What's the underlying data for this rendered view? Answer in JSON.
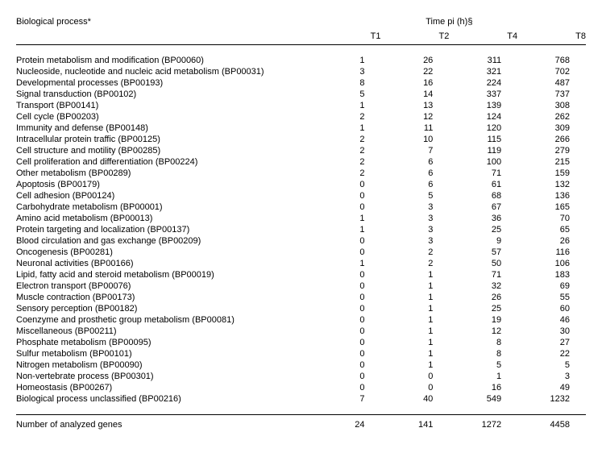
{
  "header": {
    "left": "Biological process*",
    "right": "Time pi (h)§",
    "cols": [
      "T1",
      "T2",
      "T4",
      "T8"
    ]
  },
  "rows": [
    {
      "label": "Protein metabolism and modification (BP00060)",
      "v": [
        "1",
        "26",
        "311",
        "768"
      ]
    },
    {
      "label": "Nucleoside, nucleotide and nucleic acid metabolism (BP00031)",
      "v": [
        "3",
        "22",
        "321",
        "702"
      ]
    },
    {
      "label": "Developmental processes (BP00193)",
      "v": [
        "8",
        "16",
        "224",
        "487"
      ]
    },
    {
      "label": "Signal transduction (BP00102)",
      "v": [
        "5",
        "14",
        "337",
        "737"
      ]
    },
    {
      "label": "Transport (BP00141)",
      "v": [
        "1",
        "13",
        "139",
        "308"
      ]
    },
    {
      "label": "Cell cycle (BP00203)",
      "v": [
        "2",
        "12",
        "124",
        "262"
      ]
    },
    {
      "label": "Immunity and defense (BP00148)",
      "v": [
        "1",
        "11",
        "120",
        "309"
      ]
    },
    {
      "label": "Intracellular protein traffic (BP00125)",
      "v": [
        "2",
        "10",
        "115",
        "266"
      ]
    },
    {
      "label": "Cell structure and motility (BP00285)",
      "v": [
        "2",
        "7",
        "119",
        "279"
      ]
    },
    {
      "label": "Cell proliferation and differentiation (BP00224)",
      "v": [
        "2",
        "6",
        "100",
        "215"
      ]
    },
    {
      "label": "Other metabolism (BP00289)",
      "v": [
        "2",
        "6",
        "71",
        "159"
      ]
    },
    {
      "label": "Apoptosis (BP00179)",
      "v": [
        "0",
        "6",
        "61",
        "132"
      ]
    },
    {
      "label": "Cell adhesion (BP00124)",
      "v": [
        "0",
        "5",
        "68",
        "136"
      ]
    },
    {
      "label": "Carbohydrate metabolism (BP00001)",
      "v": [
        "0",
        "3",
        "67",
        "165"
      ]
    },
    {
      "label": "Amino acid metabolism (BP00013)",
      "v": [
        "1",
        "3",
        "36",
        "70"
      ]
    },
    {
      "label": "Protein targeting and localization (BP00137)",
      "v": [
        "1",
        "3",
        "25",
        "65"
      ]
    },
    {
      "label": "Blood circulation and gas exchange (BP00209)",
      "v": [
        "0",
        "3",
        "9",
        "26"
      ]
    },
    {
      "label": "Oncogenesis (BP00281)",
      "v": [
        "0",
        "2",
        "57",
        "116"
      ]
    },
    {
      "label": "Neuronal activities (BP00166)",
      "v": [
        "1",
        "2",
        "50",
        "106"
      ]
    },
    {
      "label": "Lipid, fatty acid and steroid metabolism (BP00019)",
      "v": [
        "0",
        "1",
        "71",
        "183"
      ]
    },
    {
      "label": "Electron transport (BP00076)",
      "v": [
        "0",
        "1",
        "32",
        "69"
      ]
    },
    {
      "label": "Muscle contraction (BP00173)",
      "v": [
        "0",
        "1",
        "26",
        "55"
      ]
    },
    {
      "label": "Sensory perception (BP00182)",
      "v": [
        "0",
        "1",
        "25",
        "60"
      ]
    },
    {
      "label": "Coenzyme and prosthetic group metabolism (BP00081)",
      "v": [
        "0",
        "1",
        "19",
        "46"
      ]
    },
    {
      "label": "Miscellaneous (BP00211)",
      "v": [
        "0",
        "1",
        "12",
        "30"
      ]
    },
    {
      "label": "Phosphate metabolism (BP00095)",
      "v": [
        "0",
        "1",
        "8",
        "27"
      ]
    },
    {
      "label": "Sulfur metabolism (BP00101)",
      "v": [
        "0",
        "1",
        "8",
        "22"
      ]
    },
    {
      "label": "Nitrogen metabolism (BP00090)",
      "v": [
        "0",
        "1",
        "5",
        "5"
      ]
    },
    {
      "label": "Non-vertebrate process (BP00301)",
      "v": [
        "0",
        "0",
        "1",
        "3"
      ]
    },
    {
      "label": "Homeostasis (BP00267)",
      "v": [
        "0",
        "0",
        "16",
        "49"
      ]
    },
    {
      "label": "Biological process unclassified (BP00216)",
      "v": [
        "7",
        "40",
        "549",
        "1232"
      ]
    }
  ],
  "footer": {
    "label": "Number of analyzed genes",
    "v": [
      "24",
      "141",
      "1272",
      "4458"
    ]
  }
}
